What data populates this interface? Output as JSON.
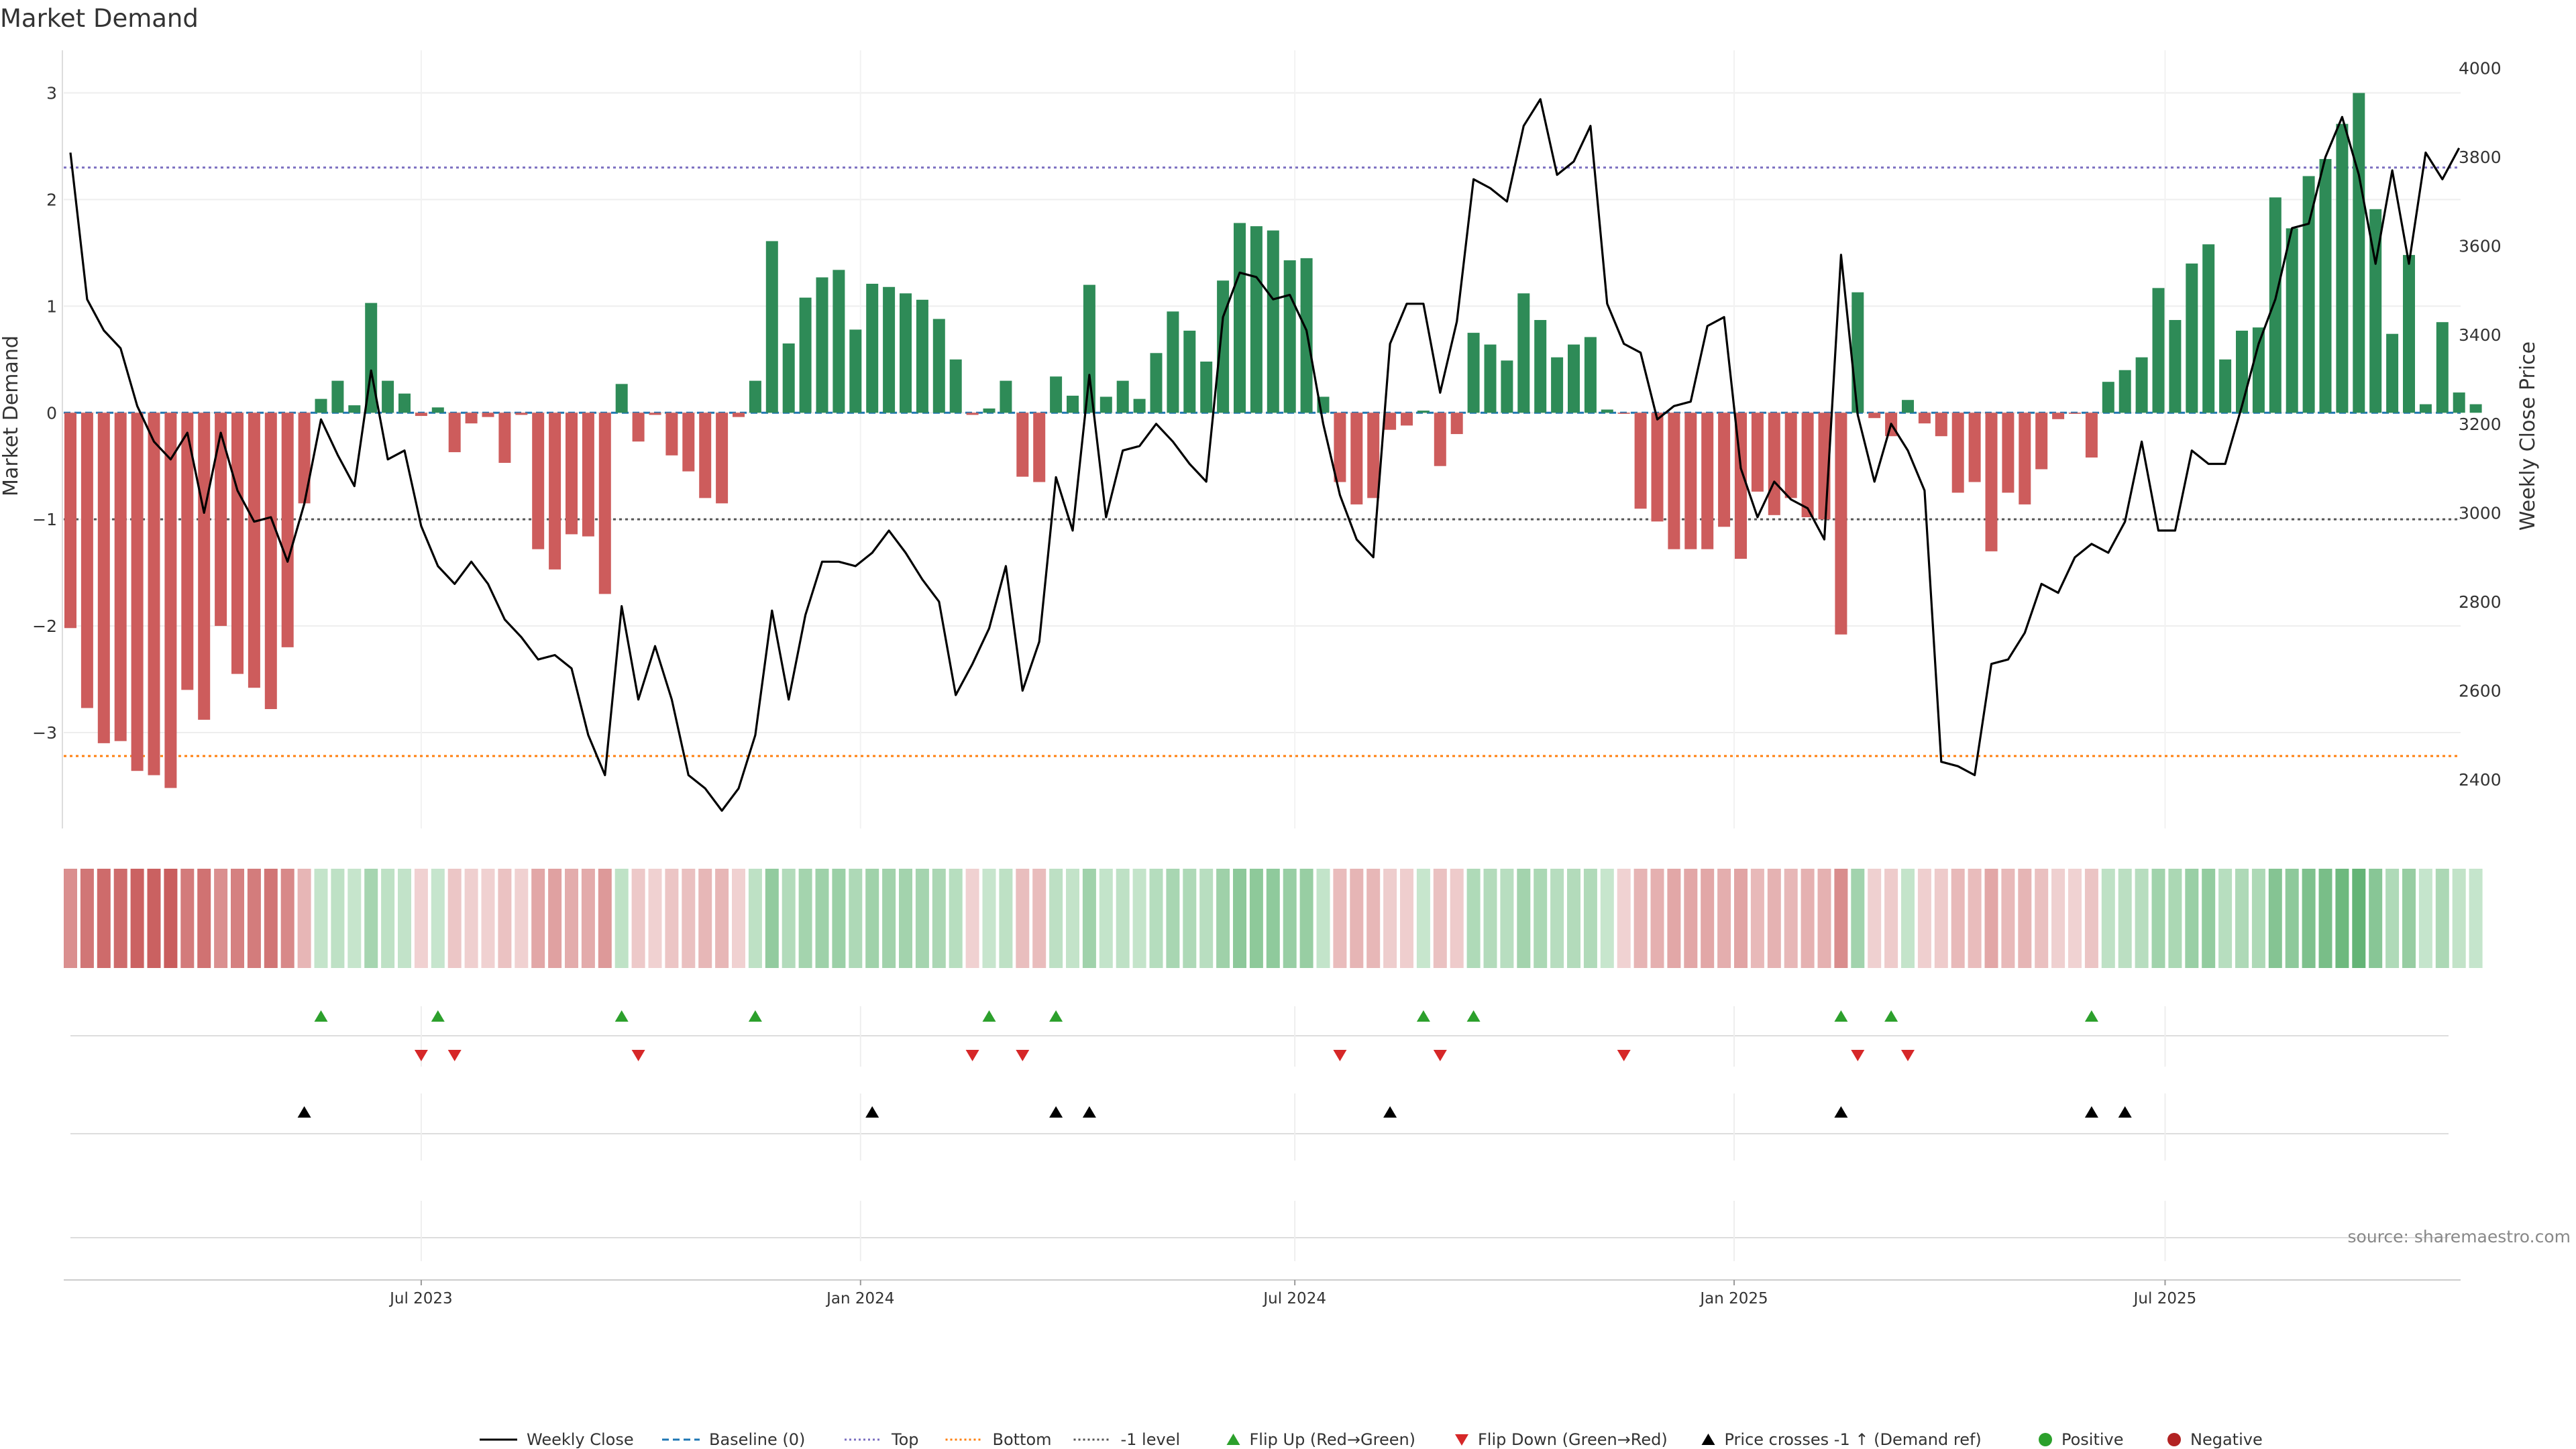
{
  "chart_data": {
    "type": "bar+line",
    "title": "Market Demand",
    "ylabel_left": "Market Demand",
    "ylabel_right": "Weekly Close Price",
    "source": "source: sharemaestro.com",
    "ylim_left": [
      -3.9,
      3.4
    ],
    "ylim_right": [
      2290,
      4040
    ],
    "left_ticks": [
      {
        "v": 3,
        "label": "3"
      },
      {
        "v": 2,
        "label": "2"
      },
      {
        "v": 1,
        "label": "1"
      },
      {
        "v": 0,
        "label": "0"
      },
      {
        "v": -1,
        "label": "−1"
      },
      {
        "v": -2,
        "label": "−2"
      },
      {
        "v": -3,
        "label": "−3"
      }
    ],
    "right_ticks": [
      {
        "v": 4000,
        "label": "4000"
      },
      {
        "v": 3800,
        "label": "3800"
      },
      {
        "v": 3600,
        "label": "3600"
      },
      {
        "v": 3400,
        "label": "3400"
      },
      {
        "v": 3200,
        "label": "3200"
      },
      {
        "v": 3000,
        "label": "3000"
      },
      {
        "v": 2800,
        "label": "2800"
      },
      {
        "v": 2600,
        "label": "2600"
      },
      {
        "v": 2400,
        "label": "2400"
      }
    ],
    "x_ticks": [
      {
        "i": 21,
        "label": "Jul 2023"
      },
      {
        "i": 47.3,
        "label": "Jan 2024"
      },
      {
        "i": 73.3,
        "label": "Jul 2024"
      },
      {
        "i": 99.6,
        "label": "Jan 2025"
      },
      {
        "i": 125.4,
        "label": "Jul 2025"
      }
    ],
    "reference_lines": {
      "top": 2.3,
      "bottom": -3.22,
      "minus_one": -1.0,
      "baseline": 0
    },
    "demand": [
      -2.02,
      -2.77,
      -3.1,
      -3.08,
      -3.36,
      -3.4,
      -3.52,
      -2.6,
      -2.88,
      -2.0,
      -2.45,
      -2.58,
      -2.78,
      -2.2,
      -0.85,
      0.13,
      0.3,
      0.07,
      1.03,
      0.3,
      0.18,
      -0.03,
      0.05,
      -0.37,
      -0.1,
      -0.04,
      -0.47,
      -0.02,
      -1.28,
      -1.47,
      -1.14,
      -1.16,
      -1.7,
      0.27,
      -0.27,
      -0.02,
      -0.4,
      -0.55,
      -0.8,
      -0.85,
      -0.04,
      0.3,
      1.61,
      0.65,
      1.08,
      1.27,
      1.34,
      0.78,
      1.21,
      1.18,
      1.12,
      1.06,
      0.88,
      0.5,
      -0.02,
      0.04,
      0.3,
      -0.6,
      -0.65,
      0.34,
      0.16,
      1.2,
      0.15,
      0.3,
      0.13,
      0.56,
      0.95,
      0.77,
      0.48,
      1.24,
      1.78,
      1.75,
      1.71,
      1.43,
      1.45,
      0.15,
      -0.65,
      -0.86,
      -0.8,
      -0.16,
      -0.12,
      0.02,
      -0.5,
      -0.2,
      0.75,
      0.64,
      0.49,
      1.12,
      0.87,
      0.52,
      0.64,
      0.71,
      0.03,
      -0.01,
      -0.9,
      -1.02,
      -1.28,
      -1.28,
      -1.28,
      -1.07,
      -1.37,
      -0.74,
      -0.96,
      -0.8,
      -0.98,
      -1.0,
      -2.08,
      1.13,
      -0.05,
      -0.22,
      0.12,
      -0.1,
      -0.22,
      -0.75,
      -0.65,
      -1.3,
      -0.75,
      -0.86,
      -0.53,
      -0.06,
      -0.01,
      -0.42,
      0.29,
      0.4,
      0.52,
      1.17,
      0.87,
      1.4,
      1.58,
      0.5,
      0.77,
      0.8,
      2.02,
      1.73,
      2.22,
      2.38,
      2.71,
      3.0,
      1.91,
      0.74,
      1.48,
      0.08,
      0.85,
      0.19,
      0.08
    ],
    "weekly_close": [
      3810,
      3480,
      3410,
      3370,
      3240,
      3160,
      3120,
      3180,
      3000,
      3180,
      3050,
      2980,
      2990,
      2890,
      3020,
      3210,
      3130,
      3060,
      3320,
      3120,
      3140,
      2970,
      2880,
      2840,
      2890,
      2840,
      2760,
      2720,
      2670,
      2680,
      2650,
      2500,
      2410,
      2790,
      2580,
      2700,
      2580,
      2410,
      2380,
      2330,
      2380,
      2500,
      2780,
      2580,
      2770,
      2890,
      2890,
      2880,
      2910,
      2960,
      2910,
      2850,
      2800,
      2590,
      2660,
      2740,
      2880,
      2600,
      2710,
      3080,
      2960,
      3310,
      2990,
      3140,
      3150,
      3200,
      3160,
      3110,
      3070,
      3440,
      3540,
      3530,
      3480,
      3490,
      3410,
      3200,
      3040,
      2940,
      2900,
      3380,
      3470,
      3470,
      3270,
      3430,
      3750,
      3730,
      3700,
      3870,
      3930,
      3760,
      3790,
      3870,
      3470,
      3380,
      3360,
      3210,
      3240,
      3250,
      3420,
      3440,
      3100,
      2990,
      3070,
      3030,
      3010,
      2940,
      3580,
      3220,
      3070,
      3200,
      3140,
      3050,
      2440,
      2430,
      2410,
      2660,
      2670,
      2730,
      2840,
      2820,
      2900,
      2930,
      2910,
      2980,
      3160,
      2960,
      2960,
      3140,
      3110,
      3110,
      3240,
      3380,
      3480,
      3640,
      3650,
      3800,
      3890,
      3760,
      3560,
      3770,
      3560,
      3810,
      3750,
      3820
    ],
    "flip_up_idx": [
      15,
      22,
      33,
      41,
      55,
      59,
      81,
      84,
      106,
      109,
      121
    ],
    "flip_down_idx": [
      21,
      23,
      34,
      54,
      57,
      76,
      82,
      93,
      107,
      110
    ],
    "price_cross_idx": [
      14,
      48,
      59,
      61,
      79,
      106,
      121,
      123
    ],
    "legend": [
      {
        "type": "line",
        "color": "#000000",
        "dash": "",
        "label": "Weekly Close"
      },
      {
        "type": "line",
        "color": "#1f77b4",
        "dash": "10,6",
        "label": "Baseline (0)"
      },
      {
        "type": "line",
        "color": "#7b6fc0",
        "dash": "3,4",
        "label": "Top"
      },
      {
        "type": "line",
        "color": "#ff7f0e",
        "dash": "3,4",
        "label": "Bottom"
      },
      {
        "type": "line",
        "color": "#555555",
        "dash": "3,4",
        "label": "-1 level"
      },
      {
        "type": "tri-up",
        "color": "#2ca02c",
        "label": "Flip Up (Red→Green)"
      },
      {
        "type": "tri-down",
        "color": "#d62728",
        "label": "Flip Down (Green→Red)"
      },
      {
        "type": "tri-up",
        "color": "#000000",
        "label": "Price crosses -1 ↑ (Demand ref)"
      },
      {
        "type": "dot",
        "color": "#2ca02c",
        "label": "Positive"
      },
      {
        "type": "dot",
        "color": "#b22222",
        "label": "Negative"
      }
    ],
    "colors": {
      "positive": "#2e8b57",
      "negative": "#cd5c5c"
    }
  }
}
